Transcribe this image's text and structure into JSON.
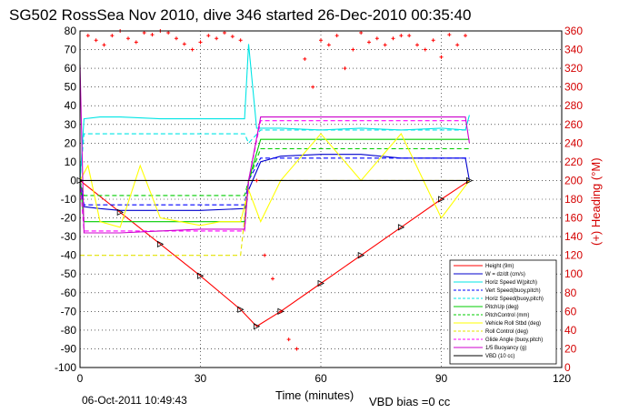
{
  "chart_data": {
    "type": "line",
    "title": "SG502 RossSea Nov 2010, dive 346 started 26-Dec-2010 00:35:40",
    "xlabel": "Time (minutes)",
    "ylabel_right": "(+) Heading (°M)",
    "xlim": [
      0,
      120
    ],
    "ylim": [
      -100,
      80
    ],
    "ylim_right": [
      0,
      360
    ],
    "x_ticks": [
      "0",
      "30",
      "60",
      "90",
      "120"
    ],
    "y_ticks": [
      "80",
      "70",
      "60",
      "50",
      "40",
      "30",
      "20",
      "10",
      "0",
      "-10",
      "-20",
      "-30",
      "-40",
      "-50",
      "-60",
      "-70",
      "-80",
      "-90",
      "-100"
    ],
    "y_ticks_right": [
      "360",
      "340",
      "320",
      "300",
      "280",
      "260",
      "240",
      "220",
      "200",
      "180",
      "160",
      "140",
      "120",
      "100",
      "80",
      "60",
      "40",
      "20",
      "0"
    ],
    "grid": true,
    "legend_position": "bottom-right",
    "timestamp": "06-Oct-2011 10:49:43",
    "vbd_bias": "VBD bias =0 cc",
    "series": [
      {
        "name": "Height (9m)",
        "color": "#ff0000",
        "style": "solid",
        "x": [
          0,
          10,
          20,
          30,
          40,
          44,
          50,
          60,
          70,
          80,
          90,
          97
        ],
        "y": [
          0,
          -17,
          -34,
          -51,
          -69,
          -78,
          -70,
          -55,
          -40,
          -25,
          -10,
          0
        ]
      },
      {
        "name": "W = dz/dt (cm/s)",
        "color": "#0000cc",
        "style": "solid",
        "x": [
          0,
          1,
          5,
          10,
          20,
          30,
          41,
          42,
          45,
          50,
          60,
          70,
          80,
          90,
          96,
          97
        ],
        "y": [
          0,
          -14,
          -15,
          -16,
          -16,
          -16,
          -15,
          -5,
          10,
          13,
          14,
          14,
          12,
          12,
          12,
          0
        ]
      },
      {
        "name": "Horiz Speed W(pitch)",
        "color": "#00e5e5",
        "style": "solid",
        "x": [
          0,
          1,
          5,
          10,
          20,
          30,
          41,
          42,
          44,
          50,
          60,
          70,
          80,
          90,
          96,
          97
        ],
        "y": [
          0,
          33,
          34,
          34,
          33,
          33,
          33,
          73,
          28,
          28,
          27,
          28,
          27,
          28,
          27,
          35
        ]
      },
      {
        "name": "Vert Speed(buoy,pitch)",
        "color": "#0000ff",
        "style": "dashed",
        "x": [
          0,
          1,
          20,
          41,
          42,
          45,
          60,
          80,
          97
        ],
        "y": [
          0,
          -13,
          -13,
          -13,
          0,
          12,
          12,
          12,
          12
        ]
      },
      {
        "name": "Horiz Speed(buoy,pitch)",
        "color": "#00e5e5",
        "style": "dashed",
        "x": [
          0,
          1,
          20,
          41,
          42,
          45,
          60,
          80,
          97
        ],
        "y": [
          0,
          25,
          25,
          25,
          20,
          27,
          27,
          27,
          27
        ]
      },
      {
        "name": "PitchUp (deg)",
        "color": "#00cc00",
        "style": "solid",
        "x": [
          0,
          1,
          10,
          20,
          30,
          41,
          42,
          45,
          60,
          80,
          97
        ],
        "y": [
          0,
          -22,
          -22,
          -22,
          -22,
          -22,
          0,
          22,
          22,
          22,
          22
        ]
      },
      {
        "name": "PitchControl (mm)",
        "color": "#00cc00",
        "style": "dashed",
        "x": [
          0,
          1,
          20,
          41,
          42,
          45,
          60,
          80,
          97
        ],
        "y": [
          0,
          -8,
          -8,
          -8,
          0,
          17,
          17,
          17,
          17
        ]
      },
      {
        "name": "Vehicle Roll Stbd (deg)",
        "color": "#ffff00",
        "style": "solid",
        "x": [
          0,
          2,
          5,
          10,
          15,
          20,
          25,
          30,
          35,
          40,
          42,
          45,
          50,
          60,
          70,
          80,
          90,
          97
        ],
        "y": [
          0,
          8,
          -22,
          -25,
          8,
          -20,
          -22,
          -24,
          -22,
          -22,
          -5,
          -22,
          0,
          25,
          0,
          25,
          -20,
          0
        ]
      },
      {
        "name": "Roll Control (deg)",
        "color": "#e5e500",
        "style": "dashed",
        "x": [
          0,
          40,
          42,
          97
        ],
        "y": [
          -40,
          -40,
          0,
          0
        ]
      },
      {
        "name": "Glide Angle (buoy,pitch)",
        "color": "#ff00ff",
        "style": "dashed",
        "x": [
          0,
          1,
          20,
          41,
          42,
          45,
          60,
          80,
          97
        ],
        "y": [
          0,
          -27,
          -27,
          -27,
          0,
          32,
          32,
          32,
          32
        ]
      },
      {
        "name": "1/5 Buoyancy (g)",
        "color": "#cc00cc",
        "style": "solid",
        "x": [
          0,
          1,
          10,
          20,
          30,
          41,
          42,
          45,
          60,
          80,
          96,
          97
        ],
        "y": [
          62,
          -28,
          -28,
          -27,
          -26,
          -26,
          0,
          34,
          34,
          34,
          34,
          20
        ]
      },
      {
        "name": "VBD (10 cc)",
        "color": "#000000",
        "style": "solid",
        "x": [
          0,
          97
        ],
        "y": [
          0,
          0
        ]
      }
    ],
    "heading_points": {
      "name": "Heading (°M)",
      "color": "#ff0000",
      "axis": "right",
      "x": [
        2,
        4,
        6,
        8,
        10,
        12,
        14,
        16,
        18,
        20,
        22,
        24,
        26,
        28,
        30,
        32,
        34,
        36,
        38,
        40,
        44,
        46,
        48,
        50,
        52,
        54,
        56,
        58,
        60,
        62,
        64,
        66,
        68,
        70,
        72,
        74,
        76,
        78,
        80,
        82,
        84,
        86,
        88,
        90,
        92,
        94,
        96
      ],
      "y": [
        355,
        350,
        345,
        355,
        360,
        352,
        348,
        358,
        356,
        360,
        358,
        352,
        346,
        340,
        348,
        355,
        352,
        358,
        354,
        350,
        200,
        120,
        95,
        60,
        30,
        20,
        330,
        300,
        350,
        345,
        355,
        320,
        340,
        358,
        348,
        352,
        345,
        352,
        355,
        355,
        345,
        340,
        350,
        332,
        356,
        345,
        355
      ]
    }
  }
}
